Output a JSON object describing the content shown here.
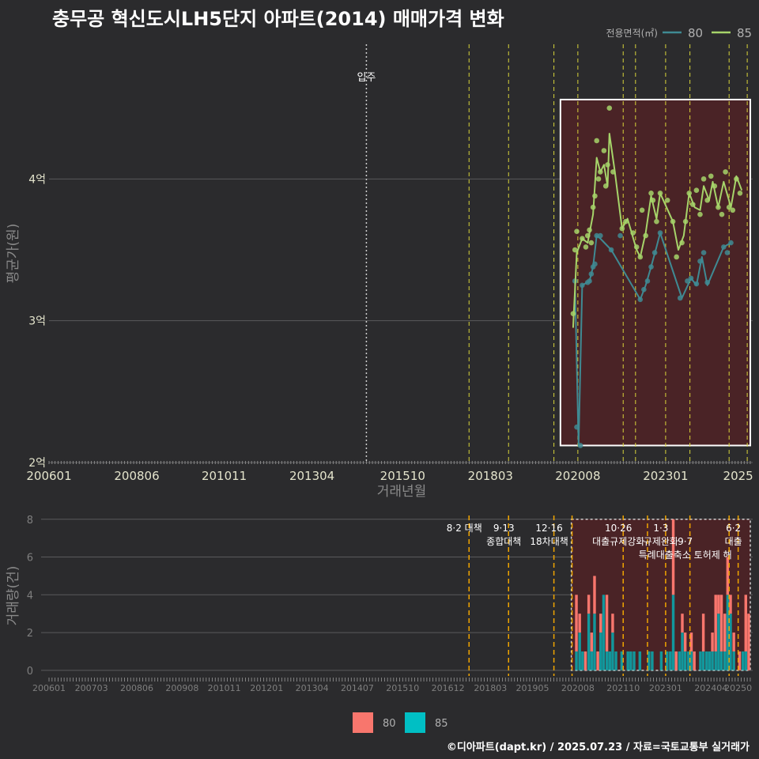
{
  "title": "충무공 혁신도시LH5단지 아파트(2014) 매매가격 변화",
  "footer": "©디아파트(dapt.kr) / 2025.07.23 / 자료=국토교통부 실거래가",
  "colors": {
    "s80": "#3f8a93",
    "s85": "#a6d46a",
    "bar80": "#f8766d",
    "bar85": "#00bfc4"
  },
  "chart_data": [
    {
      "type": "line",
      "ylabel": "평균가(원)",
      "xlabel": "거래년월",
      "legend_title": "전용면적(㎡)",
      "legend": [
        "80",
        "85"
      ],
      "y_ticks": [
        {
          "v": 2,
          "label": "2억"
        },
        {
          "v": 3,
          "label": "3억"
        },
        {
          "v": 4,
          "label": "4억"
        }
      ],
      "x_ticks": [
        {
          "t": 2006.0,
          "label": "200601"
        },
        {
          "t": 2008.42,
          "label": "200806"
        },
        {
          "t": 2010.83,
          "label": "201011"
        },
        {
          "t": 2013.25,
          "label": "201304"
        },
        {
          "t": 2015.75,
          "label": "201510"
        },
        {
          "t": 2018.17,
          "label": "201803"
        },
        {
          "t": 2020.58,
          "label": "202008"
        },
        {
          "t": 2023.0,
          "label": "202301"
        },
        {
          "t": 2025.0,
          "label": "2025"
        }
      ],
      "ylim": [
        2.0,
        4.95
      ],
      "xlim": [
        2006.0,
        2025.4
      ],
      "annotation": {
        "label": "입주",
        "t": 2014.75
      },
      "policy_lines": [
        2017.58,
        2018.67,
        2019.92,
        2020.58,
        2021.83,
        2022.17,
        2023.0,
        2023.67,
        2024.75,
        2025.25
      ],
      "highlight": {
        "t0": 2020.1,
        "t1": 2025.4,
        "y0": 2.12,
        "y1": 4.56
      },
      "series": [
        {
          "name": "80",
          "points": [
            [
              2020.5,
              3.28
            ],
            [
              2020.55,
              2.25
            ],
            [
              2020.65,
              2.12
            ],
            [
              2020.7,
              3.25
            ],
            [
              2020.85,
              3.27
            ],
            [
              2020.9,
              3.28
            ],
            [
              2020.95,
              3.33
            ],
            [
              2021.0,
              3.38
            ],
            [
              2021.05,
              3.4
            ],
            [
              2021.1,
              3.6
            ],
            [
              2021.2,
              3.6
            ],
            [
              2021.5,
              3.5
            ],
            [
              2021.75,
              3.6
            ],
            [
              2022.3,
              3.15
            ],
            [
              2022.4,
              3.22
            ],
            [
              2022.5,
              3.28
            ],
            [
              2022.6,
              3.38
            ],
            [
              2022.7,
              3.48
            ],
            [
              2022.85,
              3.62
            ],
            [
              2023.4,
              3.16
            ],
            [
              2023.6,
              3.28
            ],
            [
              2023.7,
              3.3
            ],
            [
              2023.85,
              3.26
            ],
            [
              2023.95,
              3.42
            ],
            [
              2024.05,
              3.48
            ],
            [
              2024.15,
              3.27
            ],
            [
              2024.6,
              3.52
            ],
            [
              2024.7,
              3.48
            ],
            [
              2024.8,
              3.55
            ]
          ],
          "line": [
            [
              2020.5,
              3.28
            ],
            [
              2020.6,
              2.12
            ],
            [
              2020.7,
              3.25
            ],
            [
              2020.9,
              3.28
            ],
            [
              2021.0,
              3.38
            ],
            [
              2021.1,
              3.6
            ],
            [
              2021.2,
              3.58
            ],
            [
              2021.5,
              3.5
            ],
            [
              2022.3,
              3.15
            ],
            [
              2022.45,
              3.25
            ],
            [
              2022.6,
              3.38
            ],
            [
              2022.75,
              3.52
            ],
            [
              2022.85,
              3.62
            ],
            [
              2023.45,
              3.16
            ],
            [
              2023.7,
              3.3
            ],
            [
              2023.85,
              3.25
            ],
            [
              2024.0,
              3.45
            ],
            [
              2024.15,
              3.25
            ],
            [
              2024.6,
              3.52
            ],
            [
              2024.8,
              3.55
            ]
          ]
        },
        {
          "name": "85",
          "points": [
            [
              2020.45,
              3.05
            ],
            [
              2020.5,
              3.5
            ],
            [
              2020.55,
              3.63
            ],
            [
              2020.7,
              3.58
            ],
            [
              2020.8,
              3.52
            ],
            [
              2020.85,
              3.6
            ],
            [
              2020.9,
              3.64
            ],
            [
              2020.95,
              3.55
            ],
            [
              2021.0,
              3.8
            ],
            [
              2021.05,
              3.88
            ],
            [
              2021.1,
              4.27
            ],
            [
              2021.15,
              4.0
            ],
            [
              2021.2,
              4.05
            ],
            [
              2021.3,
              4.2
            ],
            [
              2021.35,
              3.95
            ],
            [
              2021.4,
              4.1
            ],
            [
              2021.45,
              4.5
            ],
            [
              2021.55,
              4.05
            ],
            [
              2021.8,
              3.65
            ],
            [
              2021.9,
              3.7
            ],
            [
              2022.1,
              3.62
            ],
            [
              2022.2,
              3.52
            ],
            [
              2022.3,
              3.45
            ],
            [
              2022.35,
              3.78
            ],
            [
              2022.45,
              3.6
            ],
            [
              2022.6,
              3.9
            ],
            [
              2022.65,
              3.85
            ],
            [
              2022.75,
              3.7
            ],
            [
              2022.85,
              3.9
            ],
            [
              2023.05,
              3.85
            ],
            [
              2023.2,
              3.7
            ],
            [
              2023.3,
              3.45
            ],
            [
              2023.45,
              3.55
            ],
            [
              2023.55,
              3.7
            ],
            [
              2023.65,
              3.9
            ],
            [
              2023.75,
              3.82
            ],
            [
              2023.85,
              3.92
            ],
            [
              2023.95,
              3.75
            ],
            [
              2024.05,
              4.0
            ],
            [
              2024.15,
              3.85
            ],
            [
              2024.25,
              4.02
            ],
            [
              2024.35,
              3.95
            ],
            [
              2024.45,
              3.8
            ],
            [
              2024.55,
              3.75
            ],
            [
              2024.65,
              4.05
            ],
            [
              2024.75,
              3.8
            ],
            [
              2024.85,
              3.78
            ],
            [
              2024.95,
              4.0
            ],
            [
              2025.05,
              3.9
            ]
          ],
          "line": [
            [
              2020.45,
              2.95
            ],
            [
              2020.55,
              3.48
            ],
            [
              2020.7,
              3.58
            ],
            [
              2020.85,
              3.55
            ],
            [
              2021.0,
              3.75
            ],
            [
              2021.1,
              4.15
            ],
            [
              2021.2,
              4.05
            ],
            [
              2021.3,
              4.1
            ],
            [
              2021.4,
              3.95
            ],
            [
              2021.45,
              4.32
            ],
            [
              2021.6,
              4.05
            ],
            [
              2021.8,
              3.65
            ],
            [
              2021.95,
              3.72
            ],
            [
              2022.2,
              3.5
            ],
            [
              2022.3,
              3.45
            ],
            [
              2022.45,
              3.62
            ],
            [
              2022.6,
              3.88
            ],
            [
              2022.75,
              3.72
            ],
            [
              2022.85,
              3.9
            ],
            [
              2023.2,
              3.7
            ],
            [
              2023.35,
              3.5
            ],
            [
              2023.5,
              3.6
            ],
            [
              2023.65,
              3.9
            ],
            [
              2023.8,
              3.8
            ],
            [
              2023.95,
              3.78
            ],
            [
              2024.05,
              3.95
            ],
            [
              2024.2,
              3.85
            ],
            [
              2024.3,
              3.98
            ],
            [
              2024.45,
              3.8
            ],
            [
              2024.6,
              3.98
            ],
            [
              2024.8,
              3.8
            ],
            [
              2024.95,
              4.02
            ],
            [
              2025.1,
              3.92
            ]
          ]
        }
      ]
    },
    {
      "type": "bar",
      "ylabel": "거래량(건)",
      "y_ticks": [
        0,
        2,
        4,
        6,
        8
      ],
      "ylim": [
        -0.3,
        8.2
      ],
      "xlim": [
        2006.0,
        2025.4
      ],
      "x_ticks": [
        {
          "t": 2006.0,
          "label": "200601"
        },
        {
          "t": 2007.17,
          "label": "200703"
        },
        {
          "t": 2008.42,
          "label": "200806"
        },
        {
          "t": 2009.67,
          "label": "200908"
        },
        {
          "t": 2010.83,
          "label": "201011"
        },
        {
          "t": 2012.0,
          "label": "201201"
        },
        {
          "t": 2013.25,
          "label": "201304"
        },
        {
          "t": 2014.5,
          "label": "201407"
        },
        {
          "t": 2015.75,
          "label": "201510"
        },
        {
          "t": 2017.0,
          "label": "201612"
        },
        {
          "t": 2018.17,
          "label": "201803"
        },
        {
          "t": 2019.33,
          "label": "201905"
        },
        {
          "t": 2020.58,
          "label": "202008"
        },
        {
          "t": 2021.83,
          "label": "202110"
        },
        {
          "t": 2023.0,
          "label": "202301"
        },
        {
          "t": 2024.25,
          "label": "202404"
        },
        {
          "t": 2025.0,
          "label": "20250"
        }
      ],
      "policies": [
        {
          "t": 2017.58,
          "labels": [
            "8·2 대책"
          ]
        },
        {
          "t": 2018.67,
          "labels": [
            "9·13",
            "종합대책"
          ]
        },
        {
          "t": 2019.92,
          "labels": [
            "12·16",
            "18차대책"
          ]
        },
        {
          "t": 2020.42,
          "labels": []
        },
        {
          "t": 2021.83,
          "labels": [
            "10·26",
            "대출규제강화"
          ]
        },
        {
          "t": 2022.5,
          "labels": []
        },
        {
          "t": 2023.0,
          "labels": [
            "1·3",
            "규제완화"
          ]
        },
        {
          "t": 2023.67,
          "labels": [
            "",
            "9·7",
            "특례대출축소 토허제 해"
          ]
        },
        {
          "t": 2024.75,
          "labels": []
        },
        {
          "t": 2025.0,
          "labels": [
            "6·2",
            "대출"
          ]
        }
      ],
      "highlight": {
        "t0": 2020.4,
        "t1": 2025.4
      },
      "bars": [
        {
          "t": 2020.54,
          "v80": 3,
          "v85": 1
        },
        {
          "t": 2020.63,
          "v80": 1,
          "v85": 2
        },
        {
          "t": 2020.71,
          "v80": 0,
          "v85": 1
        },
        {
          "t": 2020.79,
          "v80": 1,
          "v85": 0
        },
        {
          "t": 2020.88,
          "v80": 1,
          "v85": 3
        },
        {
          "t": 2020.96,
          "v80": 1,
          "v85": 1
        },
        {
          "t": 2021.04,
          "v80": 2,
          "v85": 3
        },
        {
          "t": 2021.13,
          "v80": 1,
          "v85": 0
        },
        {
          "t": 2021.21,
          "v80": 1,
          "v85": 2
        },
        {
          "t": 2021.29,
          "v80": 0,
          "v85": 4
        },
        {
          "t": 2021.38,
          "v80": 3,
          "v85": 1
        },
        {
          "t": 2021.46,
          "v80": 0,
          "v85": 1
        },
        {
          "t": 2021.54,
          "v80": 1,
          "v85": 2
        },
        {
          "t": 2021.63,
          "v80": 0,
          "v85": 1
        },
        {
          "t": 2021.79,
          "v80": 0,
          "v85": 1
        },
        {
          "t": 2021.96,
          "v80": 0,
          "v85": 1
        },
        {
          "t": 2022.04,
          "v80": 0,
          "v85": 1
        },
        {
          "t": 2022.13,
          "v80": 0,
          "v85": 1
        },
        {
          "t": 2022.29,
          "v80": 0,
          "v85": 1
        },
        {
          "t": 2022.54,
          "v80": 0,
          "v85": 1
        },
        {
          "t": 2022.63,
          "v80": 0,
          "v85": 1
        },
        {
          "t": 2022.88,
          "v80": 0,
          "v85": 1
        },
        {
          "t": 2023.04,
          "v80": 0,
          "v85": 1
        },
        {
          "t": 2023.13,
          "v80": 0,
          "v85": 1
        },
        {
          "t": 2023.21,
          "v80": 4,
          "v85": 4
        },
        {
          "t": 2023.29,
          "v80": 1,
          "v85": 0
        },
        {
          "t": 2023.38,
          "v80": 0,
          "v85": 1
        },
        {
          "t": 2023.46,
          "v80": 1,
          "v85": 2
        },
        {
          "t": 2023.54,
          "v80": 1,
          "v85": 1
        },
        {
          "t": 2023.63,
          "v80": 0,
          "v85": 1
        },
        {
          "t": 2023.71,
          "v80": 1,
          "v85": 1
        },
        {
          "t": 2023.79,
          "v80": 1,
          "v85": 0
        },
        {
          "t": 2023.96,
          "v80": 0,
          "v85": 1
        },
        {
          "t": 2024.04,
          "v80": 2,
          "v85": 1
        },
        {
          "t": 2024.13,
          "v80": 0,
          "v85": 1
        },
        {
          "t": 2024.21,
          "v80": 0,
          "v85": 1
        },
        {
          "t": 2024.29,
          "v80": 1,
          "v85": 1
        },
        {
          "t": 2024.38,
          "v80": 3,
          "v85": 1
        },
        {
          "t": 2024.46,
          "v80": 1,
          "v85": 3
        },
        {
          "t": 2024.54,
          "v80": 3,
          "v85": 1
        },
        {
          "t": 2024.63,
          "v80": 2,
          "v85": 1
        },
        {
          "t": 2024.71,
          "v80": 2,
          "v85": 4
        },
        {
          "t": 2024.79,
          "v80": 1,
          "v85": 3
        },
        {
          "t": 2024.88,
          "v80": 1,
          "v85": 1
        },
        {
          "t": 2025.04,
          "v80": 1,
          "v85": 0
        },
        {
          "t": 2025.13,
          "v80": 0,
          "v85": 1
        },
        {
          "t": 2025.21,
          "v80": 3,
          "v85": 1
        },
        {
          "t": 2025.29,
          "v80": 3,
          "v85": 0
        }
      ],
      "legend": [
        "80",
        "85"
      ]
    }
  ]
}
